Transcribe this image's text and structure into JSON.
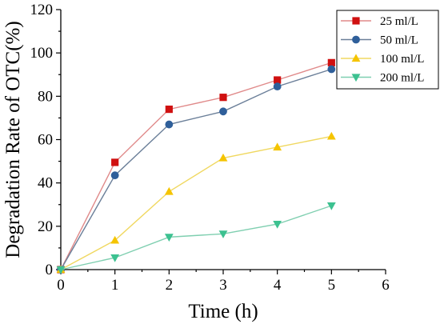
{
  "chart_data": {
    "type": "line",
    "xlabel": "Time (h)",
    "ylabel": "Degradation Rate of OTC(%)",
    "xlim": [
      0,
      6
    ],
    "ylim": [
      0,
      120
    ],
    "xticks": [
      0,
      1,
      2,
      3,
      4,
      5,
      6
    ],
    "yticks": [
      0,
      20,
      40,
      60,
      80,
      100,
      120
    ],
    "x": [
      0,
      1,
      2,
      3,
      4,
      5
    ],
    "legend_position": "top-right",
    "grid": false,
    "series": [
      {
        "name": "25 ml/L",
        "color": "#d01010",
        "line_color": "#e08a8a",
        "marker": "square",
        "values": [
          0,
          49.5,
          74.0,
          79.5,
          87.5,
          95.5
        ]
      },
      {
        "name": "50 ml/L",
        "color": "#2f5f9a",
        "line_color": "#6b7f99",
        "marker": "circle",
        "values": [
          0,
          43.5,
          67.0,
          73.0,
          84.5,
          92.5
        ]
      },
      {
        "name": "100 ml/L",
        "color": "#f5c400",
        "line_color": "#f0d860",
        "marker": "triangle-up",
        "values": [
          0,
          13.5,
          36.0,
          51.5,
          56.5,
          61.5
        ]
      },
      {
        "name": "200 ml/L",
        "color": "#3cc190",
        "line_color": "#7fcfb0",
        "marker": "triangle-down",
        "values": [
          0,
          5.5,
          15.0,
          16.5,
          21.0,
          29.5
        ]
      }
    ]
  }
}
